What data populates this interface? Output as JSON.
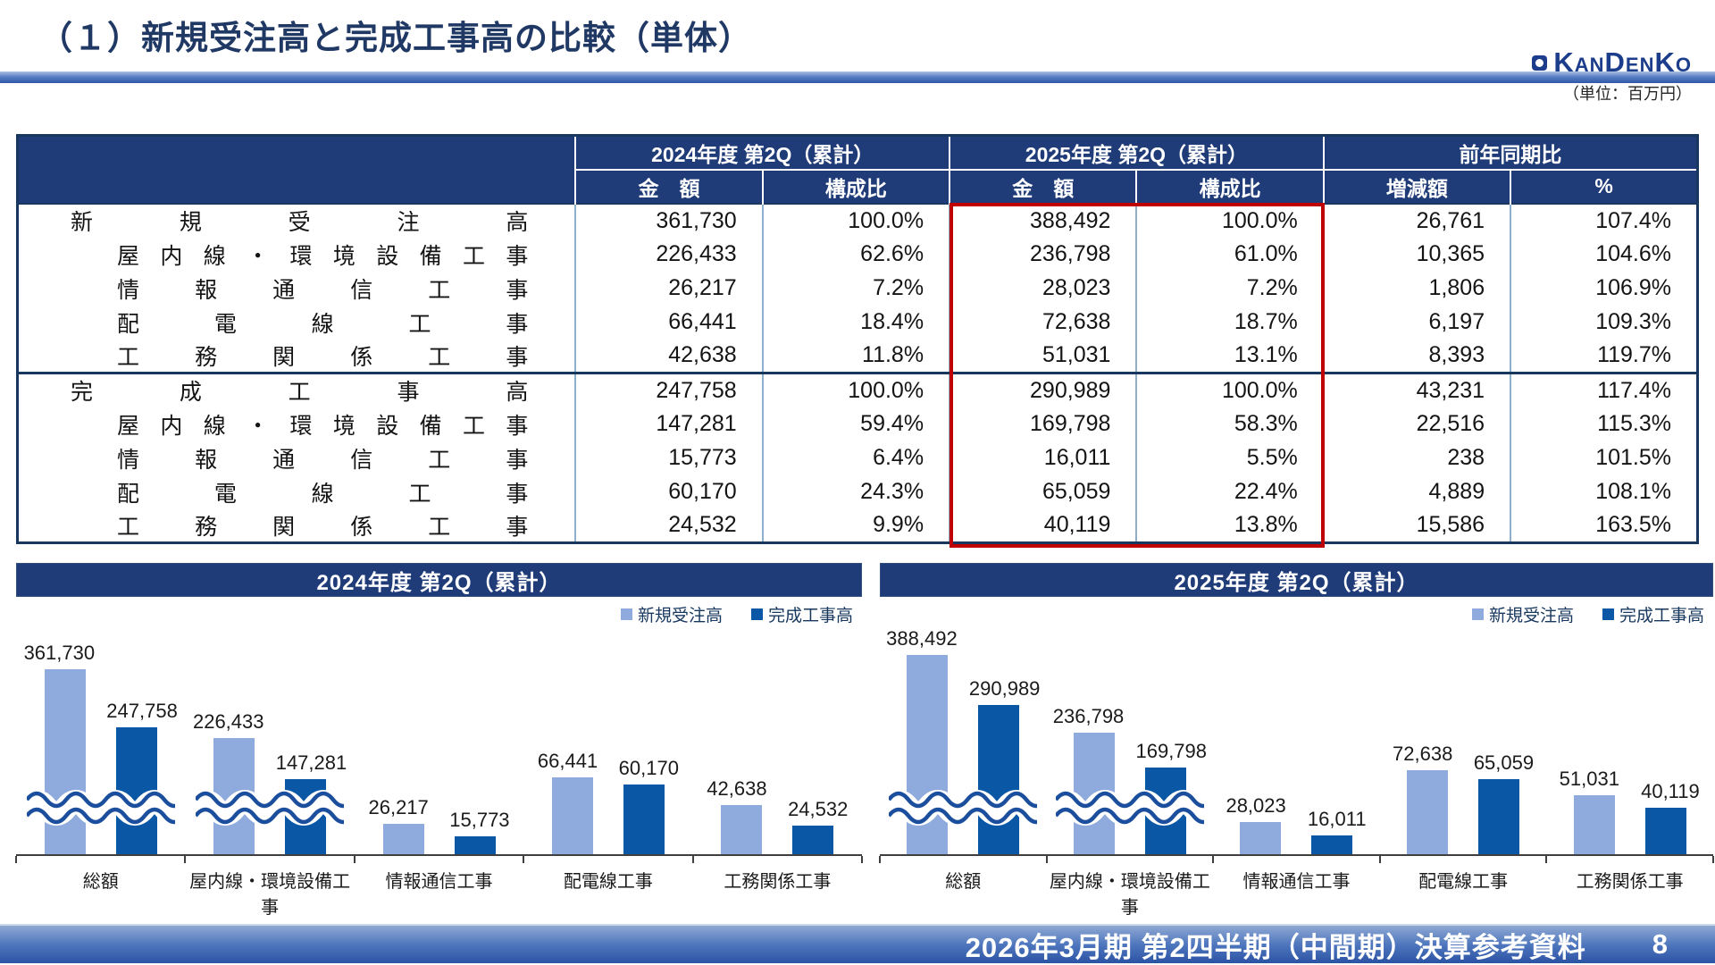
{
  "header": {
    "title": "（１）新規受注高と完成工事高の比較（単体）",
    "logo_text": "KanDenKo",
    "unit_note": "（単位：百万円）"
  },
  "table": {
    "col_groups": [
      "2024年度 第2Q（累計）",
      "2025年度 第2Q（累計）",
      "前年同期比"
    ],
    "sub_headers": [
      "金　額",
      "構成比",
      "金　額",
      "構成比",
      "増減額",
      "%"
    ],
    "highlight_color": "#C00000",
    "rows": [
      {
        "label": "新規受注高",
        "indent": false,
        "section_start": false,
        "cells": [
          "361,730",
          "100.0%",
          "388,492",
          "100.0%",
          "26,761",
          "107.4%"
        ]
      },
      {
        "label": "屋内線・環境設備工事",
        "indent": true,
        "section_start": false,
        "cells": [
          "226,433",
          "62.6%",
          "236,798",
          "61.0%",
          "10,365",
          "104.6%"
        ]
      },
      {
        "label": "情報通信工事",
        "indent": true,
        "section_start": false,
        "cells": [
          "26,217",
          "7.2%",
          "28,023",
          "7.2%",
          "1,806",
          "106.9%"
        ]
      },
      {
        "label": "配電線工事",
        "indent": true,
        "section_start": false,
        "cells": [
          "66,441",
          "18.4%",
          "72,638",
          "18.7%",
          "6,197",
          "109.3%"
        ]
      },
      {
        "label": "工務関係工事",
        "indent": true,
        "section_start": false,
        "cells": [
          "42,638",
          "11.8%",
          "51,031",
          "13.1%",
          "8,393",
          "119.7%"
        ]
      },
      {
        "label": "完成工事高",
        "indent": false,
        "section_start": true,
        "cells": [
          "247,758",
          "100.0%",
          "290,989",
          "100.0%",
          "43,231",
          "117.4%"
        ]
      },
      {
        "label": "屋内線・環境設備工事",
        "indent": true,
        "section_start": false,
        "cells": [
          "147,281",
          "59.4%",
          "169,798",
          "58.3%",
          "22,516",
          "115.3%"
        ]
      },
      {
        "label": "情報通信工事",
        "indent": true,
        "section_start": false,
        "cells": [
          "15,773",
          "6.4%",
          "16,011",
          "5.5%",
          "238",
          "101.5%"
        ]
      },
      {
        "label": "配電線工事",
        "indent": true,
        "section_start": false,
        "cells": [
          "60,170",
          "24.3%",
          "65,059",
          "22.4%",
          "4,889",
          "108.1%"
        ]
      },
      {
        "label": "工務関係工事",
        "indent": true,
        "section_start": false,
        "cells": [
          "24,532",
          "9.9%",
          "40,119",
          "13.8%",
          "15,586",
          "163.5%"
        ]
      }
    ]
  },
  "chart_data": [
    {
      "type": "bar",
      "title": "2024年度 第2Q（累計）",
      "categories": [
        "総額",
        "屋内線・環境設備工事",
        "情報通信工事",
        "配電線工事",
        "工務関係工事"
      ],
      "series": [
        {
          "name": "新規受注高",
          "color": "#8FAADC",
          "values": [
            361730,
            226433,
            26217,
            66441,
            42638
          ]
        },
        {
          "name": "完成工事高",
          "color": "#0A57A5",
          "values": [
            247758,
            147281,
            15773,
            60170,
            24532
          ]
        }
      ],
      "unit": "百万円",
      "legend_position": "top-right",
      "grid": false,
      "y_axis_visible": false,
      "axis_break": true,
      "broken_categories": [
        0,
        1
      ]
    },
    {
      "type": "bar",
      "title": "2025年度 第2Q（累計）",
      "categories": [
        "総額",
        "屋内線・環境設備工事",
        "情報通信工事",
        "配電線工事",
        "工務関係工事"
      ],
      "series": [
        {
          "name": "新規受注高",
          "color": "#8FAADC",
          "values": [
            388492,
            236798,
            28023,
            72638,
            51031
          ]
        },
        {
          "name": "完成工事高",
          "color": "#0A57A5",
          "values": [
            290989,
            169798,
            16011,
            65059,
            40119
          ]
        }
      ],
      "unit": "百万円",
      "legend_position": "top-right",
      "grid": false,
      "y_axis_visible": false,
      "axis_break": true,
      "broken_categories": [
        0,
        1
      ]
    }
  ],
  "footer": {
    "text": "2026年3月期 第2四半期（中間期）決算参考資料",
    "page_number": "8"
  }
}
